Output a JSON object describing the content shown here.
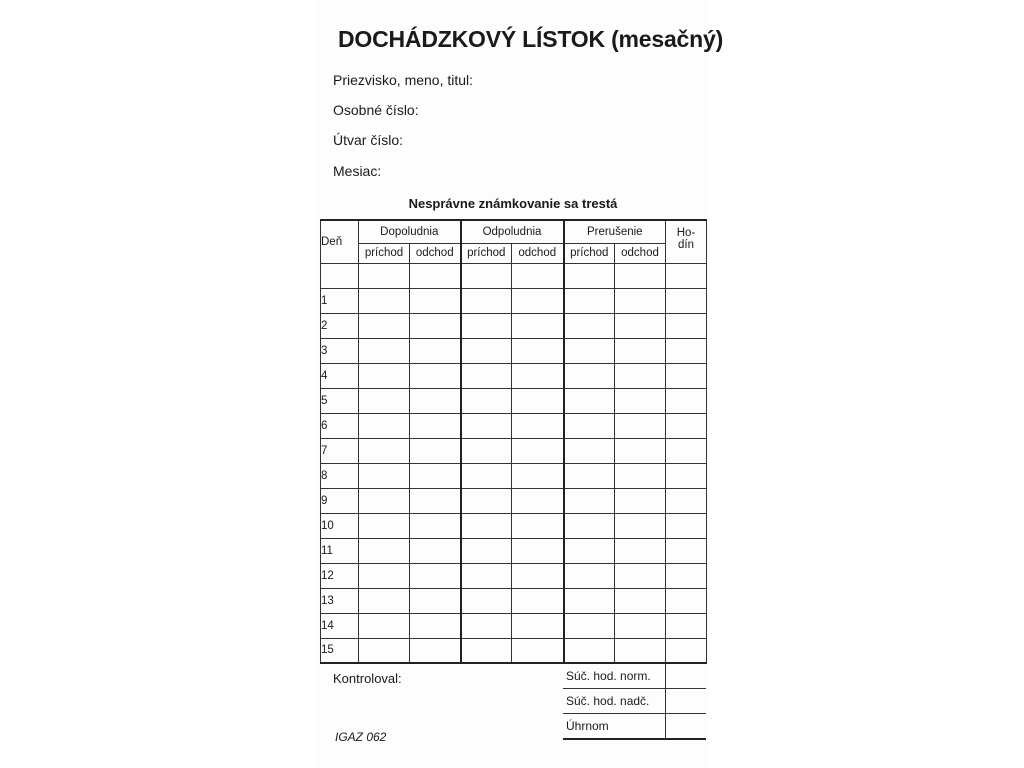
{
  "title": "DOCHÁDZKOVÝ LÍSTOK (mesačný)",
  "fields": [
    "Priezvisko, meno, titul:",
    "Osobné číslo:",
    "Útvar číslo:",
    "Mesiac:"
  ],
  "note": "Nesprávne známkovanie sa trestá",
  "table": {
    "day_header": "Deň",
    "groups": [
      "Dopoludnia",
      "Odpoludnia",
      "Prerušenie"
    ],
    "sub": [
      "príchod",
      "odchod"
    ],
    "hours_header": "Ho-\ndín",
    "days": [
      "",
      "1",
      "2",
      "3",
      "4",
      "5",
      "6",
      "7",
      "8",
      "9",
      "10",
      "11",
      "12",
      "13",
      "14",
      "15"
    ]
  },
  "footer": {
    "kontroloval": "Kontroloval:",
    "code": "IGAZ 062",
    "totals": [
      "Súč. hod. norm.",
      "Súč. hod. nadč.",
      "Úhrnom"
    ]
  }
}
